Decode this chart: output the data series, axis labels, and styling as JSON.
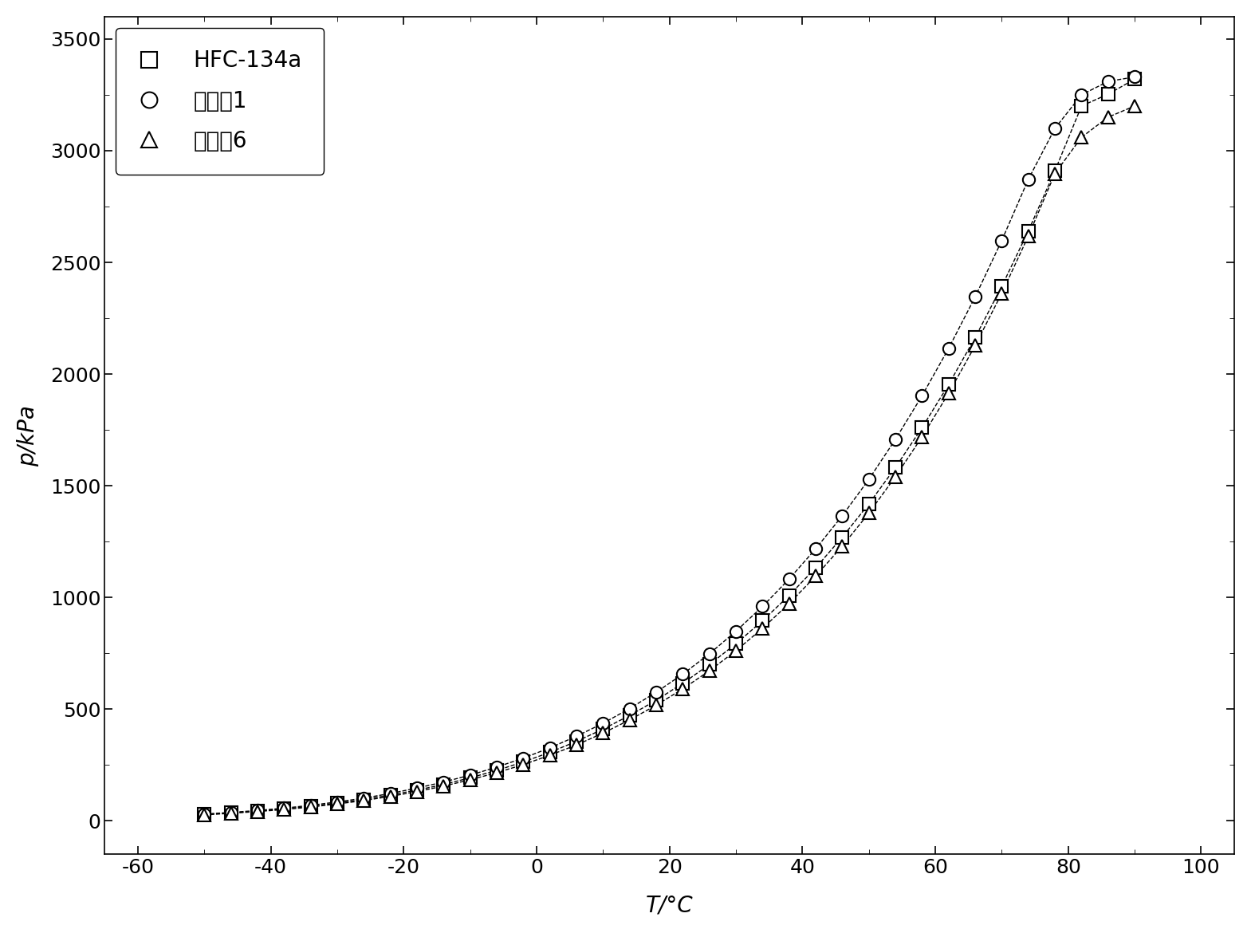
{
  "title": "",
  "xlabel": "T/°C",
  "ylabel": "p/kPa",
  "xlim": [
    -65,
    105
  ],
  "ylim": [
    -150,
    3600
  ],
  "xticks": [
    -60,
    -40,
    -20,
    0,
    20,
    40,
    60,
    80,
    100
  ],
  "yticks": [
    0,
    500,
    1000,
    1500,
    2000,
    2500,
    3000,
    3500
  ],
  "background_color": "#ffffff",
  "legend_labels": [
    "HFC-134a",
    "实施例1",
    "实施例6"
  ],
  "legend_markers": [
    "s",
    "o",
    "^"
  ],
  "series": {
    "HFC-134a": {
      "T": [
        -50,
        -46,
        -42,
        -38,
        -34,
        -30,
        -26,
        -22,
        -18,
        -14,
        -10,
        -6,
        -2,
        2,
        6,
        10,
        14,
        18,
        22,
        26,
        30,
        34,
        38,
        42,
        46,
        50,
        54,
        58,
        62,
        66,
        70,
        74,
        78,
        82,
        86,
        90
      ],
      "p": [
        29,
        36,
        44,
        54,
        66,
        80,
        96,
        116,
        138,
        163,
        193,
        226,
        264,
        307,
        356,
        411,
        472,
        540,
        616,
        700,
        793,
        896,
        1009,
        1133,
        1270,
        1419,
        1582,
        1760,
        1953,
        2164,
        2393,
        2641,
        2910,
        3200,
        3253,
        3320
      ]
    },
    "实施例1": {
      "T": [
        -50,
        -46,
        -42,
        -38,
        -34,
        -30,
        -26,
        -22,
        -18,
        -14,
        -10,
        -6,
        -2,
        2,
        6,
        10,
        14,
        18,
        22,
        26,
        30,
        34,
        38,
        42,
        46,
        50,
        54,
        58,
        62,
        66,
        70,
        74,
        78,
        82,
        86,
        90
      ],
      "p": [
        31,
        38,
        47,
        57,
        70,
        85,
        102,
        123,
        147,
        174,
        205,
        241,
        281,
        327,
        379,
        437,
        503,
        576,
        657,
        748,
        849,
        960,
        1083,
        1218,
        1366,
        1529,
        1708,
        1903,
        2115,
        2346,
        2598,
        2872,
        3100,
        3250,
        3310,
        3330
      ]
    },
    "实施例6": {
      "T": [
        -50,
        -46,
        -42,
        -38,
        -34,
        -30,
        -26,
        -22,
        -18,
        -14,
        -10,
        -6,
        -2,
        2,
        6,
        10,
        14,
        18,
        22,
        26,
        30,
        34,
        38,
        42,
        46,
        50,
        54,
        58,
        62,
        66,
        70,
        74,
        78,
        82,
        86,
        90
      ],
      "p": [
        27,
        34,
        42,
        51,
        62,
        76,
        91,
        110,
        131,
        156,
        184,
        216,
        252,
        294,
        340,
        393,
        452,
        518,
        591,
        672,
        762,
        862,
        973,
        1096,
        1230,
        1378,
        1541,
        1719,
        1914,
        2128,
        2362,
        2618,
        2898,
        3060,
        3150,
        3200
      ]
    }
  },
  "marker_size": 11,
  "line_width": 1.0,
  "font_size_label": 20,
  "font_size_tick": 18,
  "font_size_legend": 20
}
